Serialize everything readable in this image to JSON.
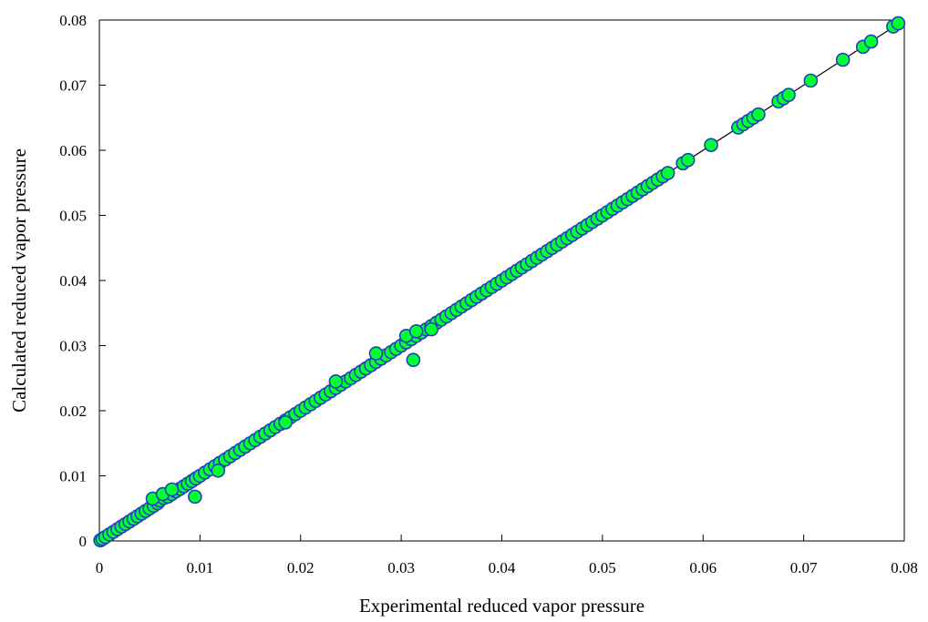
{
  "chart_data": {
    "type": "scatter",
    "title": "",
    "xlabel": "Experimental reduced vapor pressure",
    "ylabel": "Calculated reduced vapor pressure",
    "xlim": [
      0,
      0.08
    ],
    "ylim": [
      0,
      0.08
    ],
    "x_ticks": [
      "0",
      "0.01",
      "0.02",
      "0.03",
      "0.04",
      "0.05",
      "0.06",
      "0.07",
      "0.08"
    ],
    "y_ticks": [
      "0",
      "0.01",
      "0.02",
      "0.03",
      "0.04",
      "0.05",
      "0.06",
      "0.07",
      "0.08"
    ],
    "grid": false,
    "legend": "none",
    "marker_fill": "#00ff33",
    "marker_edge": "#1f3fbf",
    "line_color": "#000000",
    "reference_line": {
      "x": [
        0,
        0.08
      ],
      "y": [
        0,
        0.08
      ]
    },
    "series": [
      {
        "points": [
          [
            0.0001,
            0.0001
          ],
          [
            0.0003,
            0.0003
          ],
          [
            0.0006,
            0.0006
          ],
          [
            0.001,
            0.001
          ],
          [
            0.0014,
            0.0014
          ],
          [
            0.0018,
            0.0018
          ],
          [
            0.0022,
            0.0022
          ],
          [
            0.0026,
            0.0026
          ],
          [
            0.003,
            0.003
          ],
          [
            0.0034,
            0.0034
          ],
          [
            0.0038,
            0.0038
          ],
          [
            0.0042,
            0.0042
          ],
          [
            0.0046,
            0.0046
          ],
          [
            0.005,
            0.005
          ],
          [
            0.0054,
            0.0054
          ],
          [
            0.0058,
            0.0058
          ],
          [
            0.006,
            0.0062
          ],
          [
            0.0064,
            0.0066
          ],
          [
            0.0068,
            0.0068
          ],
          [
            0.0072,
            0.0072
          ],
          [
            0.0076,
            0.0076
          ],
          [
            0.008,
            0.008
          ],
          [
            0.0084,
            0.0084
          ],
          [
            0.0088,
            0.0088
          ],
          [
            0.0092,
            0.0092
          ],
          [
            0.0096,
            0.0096
          ],
          [
            0.01,
            0.01
          ],
          [
            0.0105,
            0.0105
          ],
          [
            0.011,
            0.011
          ],
          [
            0.0115,
            0.0115
          ],
          [
            0.012,
            0.012
          ],
          [
            0.0125,
            0.0125
          ],
          [
            0.013,
            0.013
          ],
          [
            0.0135,
            0.0135
          ],
          [
            0.014,
            0.014
          ],
          [
            0.0145,
            0.0145
          ],
          [
            0.015,
            0.015
          ],
          [
            0.0155,
            0.0155
          ],
          [
            0.016,
            0.016
          ],
          [
            0.0165,
            0.0165
          ],
          [
            0.017,
            0.017
          ],
          [
            0.0175,
            0.0175
          ],
          [
            0.018,
            0.018
          ],
          [
            0.0185,
            0.0185
          ],
          [
            0.019,
            0.019
          ],
          [
            0.0195,
            0.0195
          ],
          [
            0.02,
            0.02
          ],
          [
            0.0205,
            0.0205
          ],
          [
            0.021,
            0.021
          ],
          [
            0.0215,
            0.0215
          ],
          [
            0.022,
            0.022
          ],
          [
            0.0225,
            0.0225
          ],
          [
            0.023,
            0.023
          ],
          [
            0.0235,
            0.0235
          ],
          [
            0.024,
            0.024
          ],
          [
            0.0245,
            0.0245
          ],
          [
            0.025,
            0.025
          ],
          [
            0.0255,
            0.0255
          ],
          [
            0.026,
            0.026
          ],
          [
            0.0265,
            0.0265
          ],
          [
            0.027,
            0.027
          ],
          [
            0.0275,
            0.0275
          ],
          [
            0.028,
            0.028
          ],
          [
            0.0285,
            0.0285
          ],
          [
            0.029,
            0.029
          ],
          [
            0.0295,
            0.0295
          ],
          [
            0.03,
            0.03
          ],
          [
            0.0305,
            0.0305
          ],
          [
            0.031,
            0.031
          ],
          [
            0.0315,
            0.0315
          ],
          [
            0.032,
            0.032
          ],
          [
            0.0325,
            0.0325
          ],
          [
            0.033,
            0.033
          ],
          [
            0.0335,
            0.0335
          ],
          [
            0.034,
            0.034
          ],
          [
            0.0345,
            0.0345
          ],
          [
            0.035,
            0.035
          ],
          [
            0.0355,
            0.0355
          ],
          [
            0.036,
            0.036
          ],
          [
            0.0365,
            0.0365
          ],
          [
            0.037,
            0.037
          ],
          [
            0.0375,
            0.0375
          ],
          [
            0.038,
            0.038
          ],
          [
            0.0385,
            0.0385
          ],
          [
            0.039,
            0.039
          ],
          [
            0.0395,
            0.0395
          ],
          [
            0.04,
            0.04
          ],
          [
            0.0405,
            0.0405
          ],
          [
            0.041,
            0.041
          ],
          [
            0.0415,
            0.0415
          ],
          [
            0.042,
            0.042
          ],
          [
            0.0425,
            0.0425
          ],
          [
            0.043,
            0.043
          ],
          [
            0.0435,
            0.0435
          ],
          [
            0.044,
            0.044
          ],
          [
            0.0445,
            0.0445
          ],
          [
            0.045,
            0.045
          ],
          [
            0.0455,
            0.0455
          ],
          [
            0.046,
            0.046
          ],
          [
            0.0465,
            0.0465
          ],
          [
            0.047,
            0.047
          ],
          [
            0.0475,
            0.0475
          ],
          [
            0.048,
            0.048
          ],
          [
            0.0485,
            0.0485
          ],
          [
            0.049,
            0.049
          ],
          [
            0.0495,
            0.0495
          ],
          [
            0.05,
            0.05
          ],
          [
            0.0505,
            0.0505
          ],
          [
            0.051,
            0.051
          ],
          [
            0.0515,
            0.0515
          ],
          [
            0.052,
            0.052
          ],
          [
            0.0525,
            0.0525
          ],
          [
            0.053,
            0.053
          ],
          [
            0.0535,
            0.0535
          ],
          [
            0.054,
            0.054
          ],
          [
            0.0545,
            0.0545
          ],
          [
            0.055,
            0.055
          ],
          [
            0.0555,
            0.0555
          ],
          [
            0.056,
            0.056
          ],
          [
            0.0565,
            0.0565
          ],
          [
            0.058,
            0.058
          ],
          [
            0.0585,
            0.0585
          ],
          [
            0.0608,
            0.0608
          ],
          [
            0.0635,
            0.0635
          ],
          [
            0.064,
            0.064
          ],
          [
            0.0645,
            0.0645
          ],
          [
            0.065,
            0.065
          ],
          [
            0.0655,
            0.0655
          ],
          [
            0.0675,
            0.0675
          ],
          [
            0.068,
            0.068
          ],
          [
            0.0685,
            0.0685
          ],
          [
            0.0707,
            0.0707
          ],
          [
            0.0739,
            0.0739
          ],
          [
            0.0759,
            0.0759
          ],
          [
            0.0767,
            0.0767
          ],
          [
            0.0789,
            0.079
          ],
          [
            0.0794,
            0.0795
          ],
          [
            0.0053,
            0.0065
          ],
          [
            0.0063,
            0.0072
          ],
          [
            0.0072,
            0.0079
          ],
          [
            0.0095,
            0.0068
          ],
          [
            0.0118,
            0.0108
          ],
          [
            0.0185,
            0.0182
          ],
          [
            0.0235,
            0.0245
          ],
          [
            0.0275,
            0.0288
          ],
          [
            0.0305,
            0.0315
          ],
          [
            0.0312,
            0.0278
          ],
          [
            0.0315,
            0.0322
          ],
          [
            0.033,
            0.0325
          ]
        ]
      }
    ]
  }
}
